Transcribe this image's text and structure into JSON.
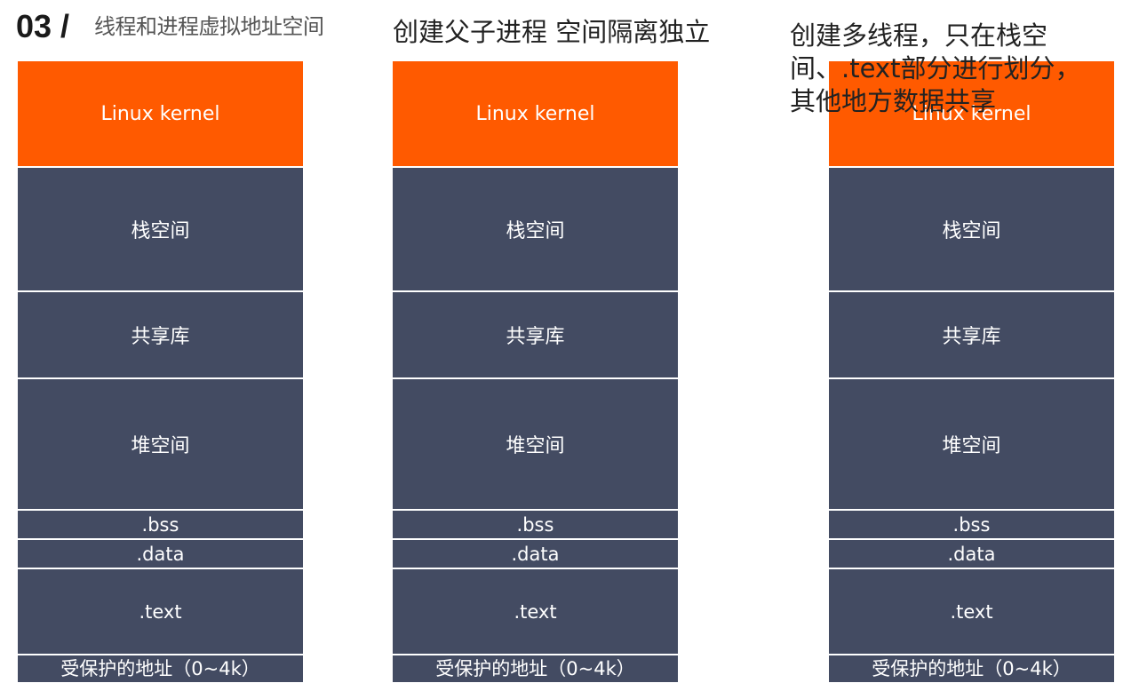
{
  "header": {
    "page_number": "03 /",
    "section_title": "线程和进程虚拟地址空间"
  },
  "captions": {
    "fork": "创建父子进程 空间隔离独立",
    "threads": "创建多线程，只在栈空间、.text部分进行划分，其他地方数据共享"
  },
  "colors": {
    "kernel": "#ff5a00",
    "segment": "#434b62",
    "divider": "#ffffff"
  },
  "columns": [
    {
      "kernel": "Linux kernel",
      "stack": "栈空间",
      "shared_lib": "共享库",
      "heap": "堆空间",
      "bss": ".bss",
      "data": ".data",
      "text": ".text",
      "protected": "受保护的地址（0~4k）"
    },
    {
      "kernel": "Linux kernel",
      "stack": "栈空间",
      "shared_lib": "共享库",
      "heap": "堆空间",
      "bss": ".bss",
      "data": ".data",
      "text": ".text",
      "protected": "受保护的地址（0~4k）"
    },
    {
      "kernel": "Linux kernel",
      "stack": "栈空间",
      "shared_lib": "共享库",
      "heap": "堆空间",
      "bss": ".bss",
      "data": ".data",
      "text": ".text",
      "protected": "受保护的地址（0~4k）"
    }
  ]
}
